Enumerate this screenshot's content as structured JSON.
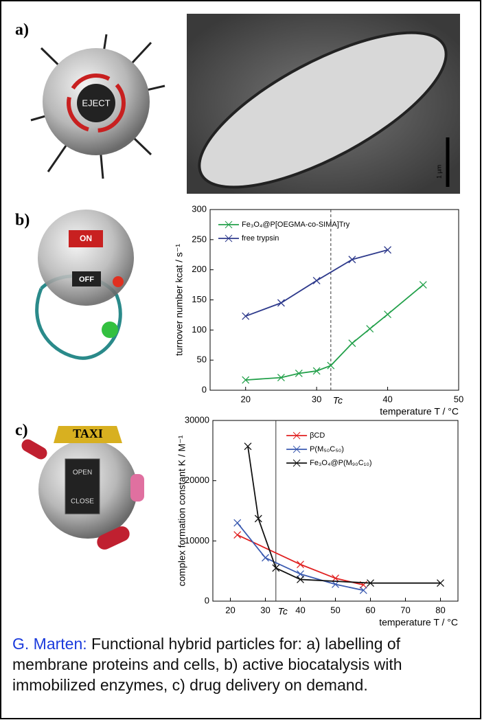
{
  "panels": [
    "a)",
    "b)",
    "c)"
  ],
  "illustrations": {
    "eject": "EJECT",
    "on": "ON",
    "off": "OFF",
    "taxi": "TAXI",
    "open": "OPEN",
    "close": "CLOSE",
    "scale_bar": "1 µm"
  },
  "chart_data": [
    {
      "type": "line",
      "xlabel": "temperature T / °C",
      "ylabel": "turnover number kcat / s⁻¹",
      "xlim": [
        15,
        50
      ],
      "ylim": [
        0,
        300
      ],
      "xticks": [
        20,
        30,
        40,
        50
      ],
      "yticks": [
        0,
        50,
        100,
        150,
        200,
        250,
        300
      ],
      "legend": "upper left",
      "marker": "x",
      "vline": {
        "value": 32,
        "label": "Tc",
        "style": "dashed"
      },
      "series": [
        {
          "name": "Fe₃O₄@P[OEGMA-co-SIMA]Try",
          "color": "#22a04a",
          "x": [
            20,
            25,
            27.5,
            30,
            32,
            35,
            37.5,
            40,
            45
          ],
          "values": [
            17,
            21,
            28,
            32,
            41,
            78,
            102,
            126,
            175
          ]
        },
        {
          "name": "free trypsin",
          "color": "#2e3a8c",
          "x": [
            20,
            25,
            30,
            35,
            40
          ],
          "values": [
            123,
            145,
            182,
            217,
            233
          ]
        }
      ]
    },
    {
      "type": "line",
      "xlabel": "temperature T / °C",
      "ylabel": "complex formation constant K / M⁻¹",
      "xlim": [
        15,
        85
      ],
      "ylim": [
        0,
        30000
      ],
      "xticks": [
        20,
        30,
        40,
        50,
        60,
        70,
        80
      ],
      "yticks": [
        0,
        10000,
        20000,
        30000
      ],
      "legend": "upper center",
      "marker": "x",
      "vline": {
        "value": 33,
        "label": "Tc",
        "style": "solid"
      },
      "series": [
        {
          "name": "βCD",
          "color": "#e02020",
          "x": [
            22,
            40,
            50,
            58
          ],
          "values": [
            11000,
            6100,
            3800,
            2700
          ]
        },
        {
          "name": "P(M₅₀C₅₀)",
          "color": "#3a5ab0",
          "x": [
            22,
            30,
            40,
            50,
            58
          ],
          "values": [
            13000,
            7200,
            4500,
            2800,
            1800
          ]
        },
        {
          "name": "Fe₃O₄@P(M₉₀C₁₀)",
          "color": "#111111",
          "x": [
            25,
            28,
            33,
            40,
            60,
            80
          ],
          "values": [
            25700,
            13700,
            5500,
            3600,
            3000,
            3000
          ]
        }
      ]
    }
  ],
  "caption": {
    "author": "G. Marten:",
    "text": "Functional hybrid particles for: a) labelling of membrane proteins and cells, b) active biocatalysis with immobilized enzymes, c) drug delivery on demand."
  }
}
